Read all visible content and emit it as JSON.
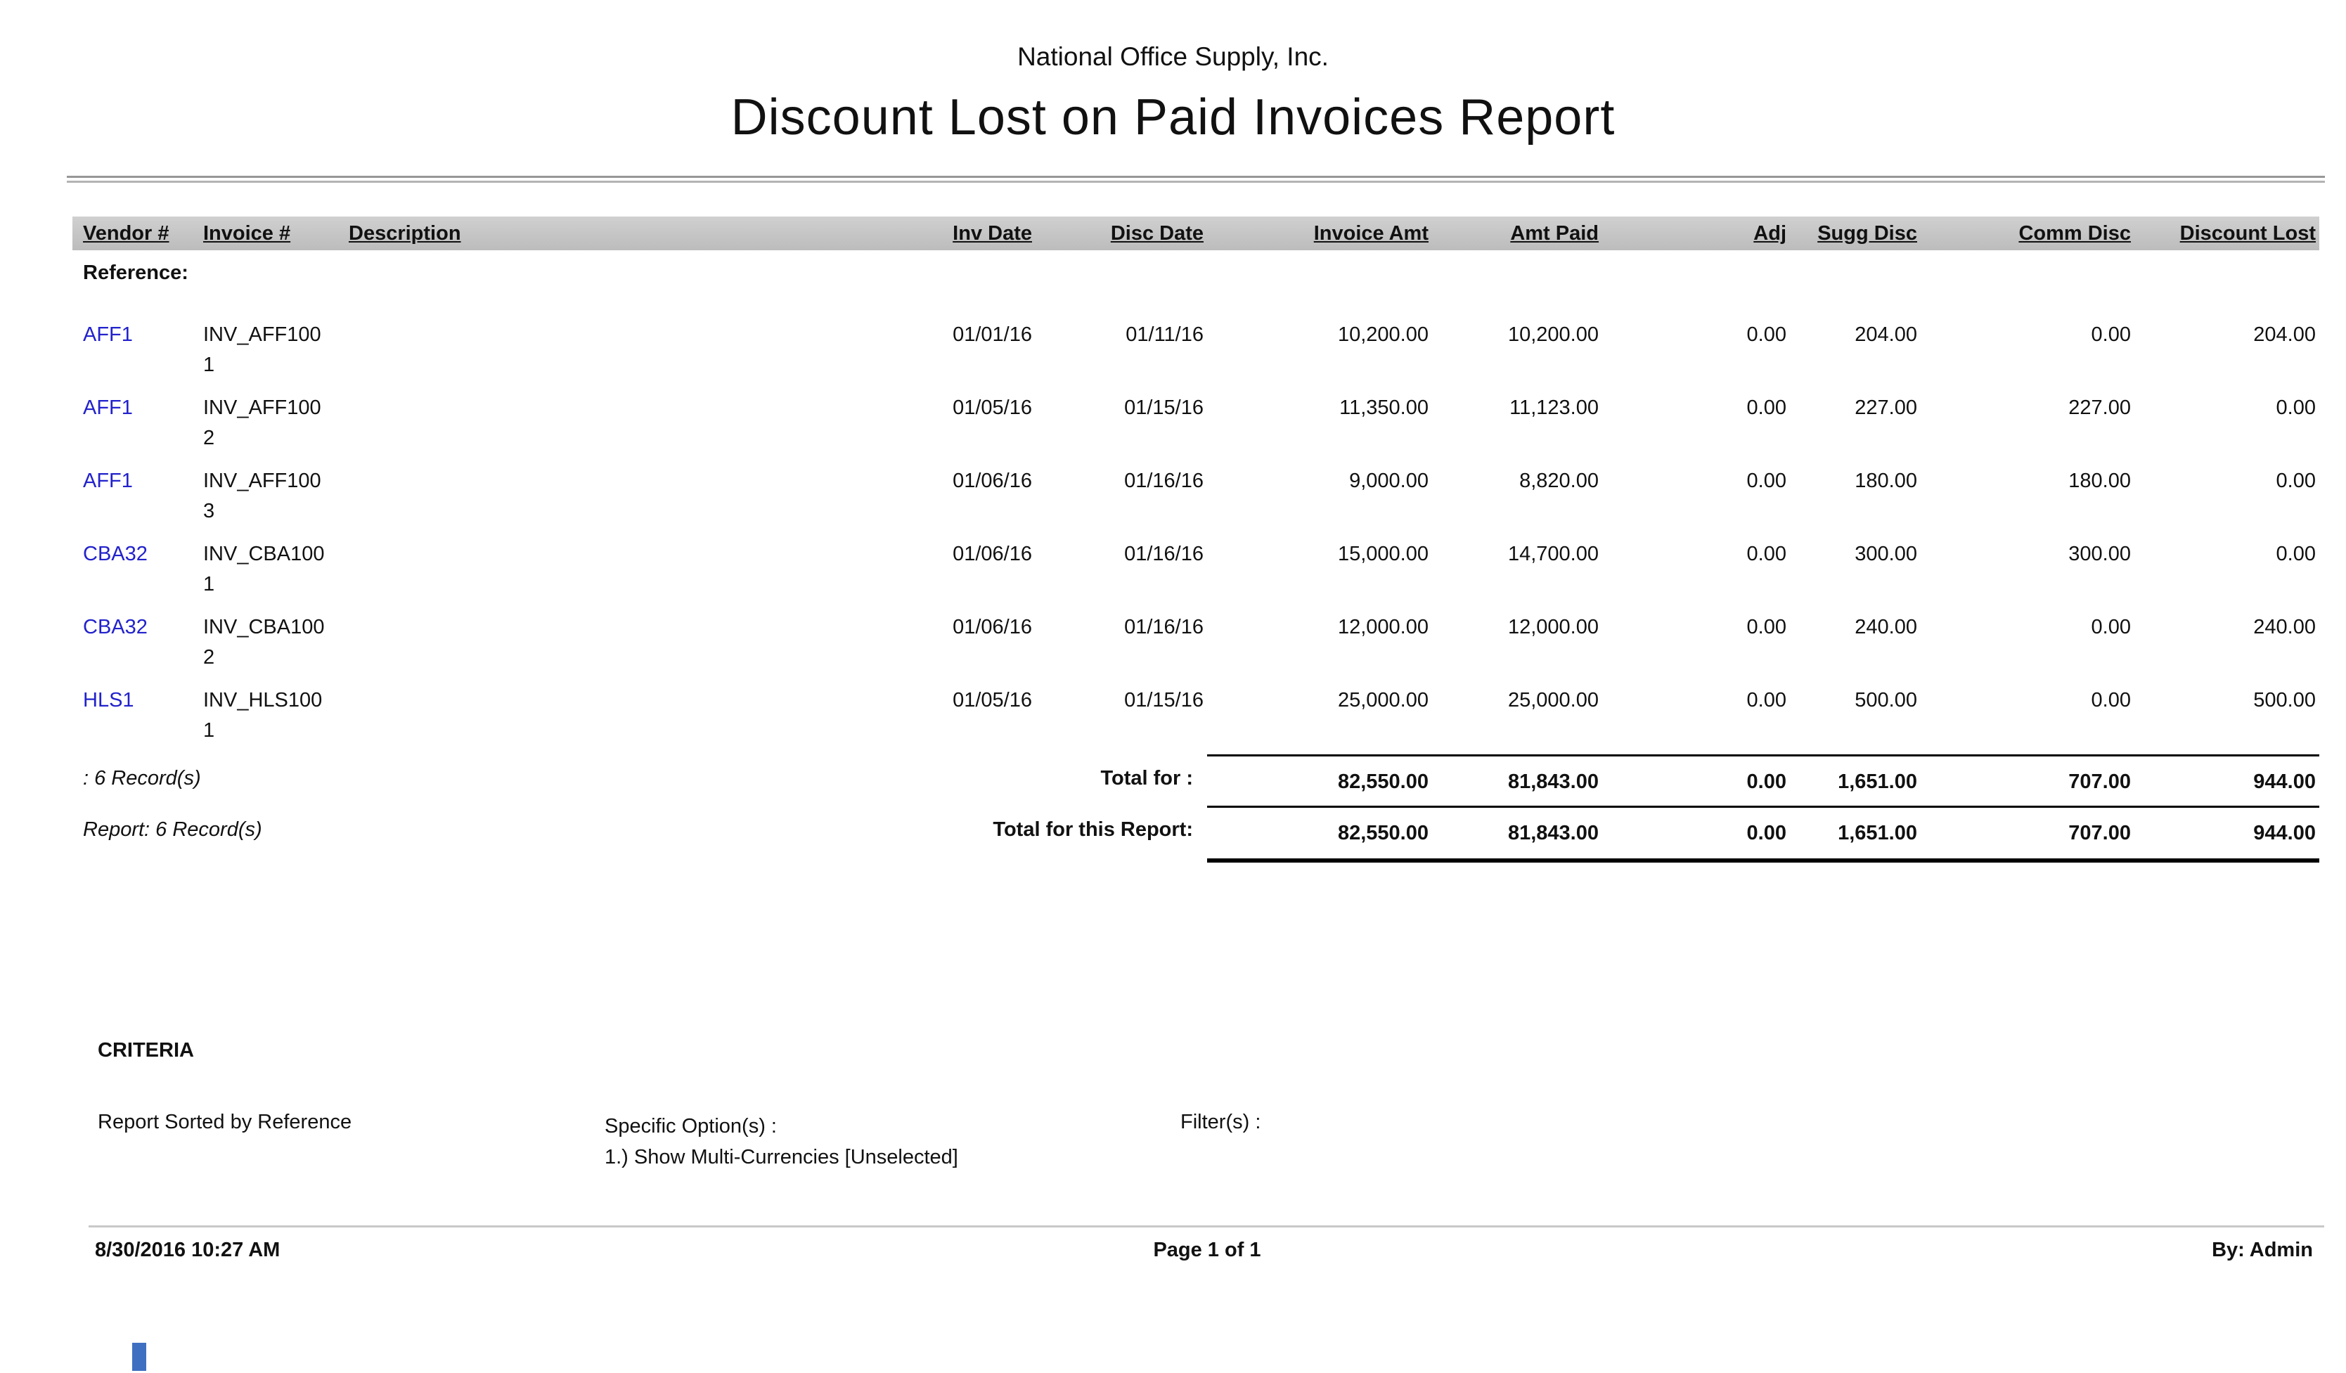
{
  "report": {
    "company": "National Office Supply, Inc.",
    "title": "Discount Lost on Paid Invoices Report"
  },
  "table": {
    "columns": [
      "Vendor #",
      "Invoice #",
      "Description",
      "Inv Date",
      "Disc Date",
      "Invoice Amt",
      "Amt Paid",
      "Adj",
      "Sugg Disc",
      "Comm Disc",
      "Discount Lost"
    ],
    "group_label": "Reference:",
    "rows": [
      {
        "vendor": "AFF1",
        "invoice_l1": "INV_AFF100",
        "invoice_l2": "1",
        "description": "",
        "inv_date": "01/01/16",
        "disc_date": "01/11/16",
        "invoice_amt": "10,200.00",
        "amt_paid": "10,200.00",
        "adj": "0.00",
        "sugg_disc": "204.00",
        "comm_disc": "0.00",
        "discount_lost": "204.00"
      },
      {
        "vendor": "AFF1",
        "invoice_l1": "INV_AFF100",
        "invoice_l2": "2",
        "description": "",
        "inv_date": "01/05/16",
        "disc_date": "01/15/16",
        "invoice_amt": "11,350.00",
        "amt_paid": "11,123.00",
        "adj": "0.00",
        "sugg_disc": "227.00",
        "comm_disc": "227.00",
        "discount_lost": "0.00"
      },
      {
        "vendor": "AFF1",
        "invoice_l1": "INV_AFF100",
        "invoice_l2": "3",
        "description": "",
        "inv_date": "01/06/16",
        "disc_date": "01/16/16",
        "invoice_amt": "9,000.00",
        "amt_paid": "8,820.00",
        "adj": "0.00",
        "sugg_disc": "180.00",
        "comm_disc": "180.00",
        "discount_lost": "0.00"
      },
      {
        "vendor": "CBA32",
        "invoice_l1": "INV_CBA100",
        "invoice_l2": "1",
        "description": "",
        "inv_date": "01/06/16",
        "disc_date": "01/16/16",
        "invoice_amt": "15,000.00",
        "amt_paid": "14,700.00",
        "adj": "0.00",
        "sugg_disc": "300.00",
        "comm_disc": "300.00",
        "discount_lost": "0.00"
      },
      {
        "vendor": "CBA32",
        "invoice_l1": "INV_CBA100",
        "invoice_l2": "2",
        "description": "",
        "inv_date": "01/06/16",
        "disc_date": "01/16/16",
        "invoice_amt": "12,000.00",
        "amt_paid": "12,000.00",
        "adj": "0.00",
        "sugg_disc": "240.00",
        "comm_disc": "0.00",
        "discount_lost": "240.00"
      },
      {
        "vendor": "HLS1",
        "invoice_l1": "INV_HLS100",
        "invoice_l2": "1",
        "description": "",
        "inv_date": "01/05/16",
        "disc_date": "01/15/16",
        "invoice_amt": "25,000.00",
        "amt_paid": "25,000.00",
        "adj": "0.00",
        "sugg_disc": "500.00",
        "comm_disc": "0.00",
        "discount_lost": "500.00"
      }
    ],
    "group_total": {
      "records_label": ": 6 Record(s)",
      "label": "Total for :",
      "invoice_amt": "82,550.00",
      "amt_paid": "81,843.00",
      "adj": "0.00",
      "sugg_disc": "1,651.00",
      "comm_disc": "707.00",
      "discount_lost": "944.00"
    },
    "report_total": {
      "records_label": "Report: 6 Record(s)",
      "label": "Total for this Report:",
      "invoice_amt": "82,550.00",
      "amt_paid": "81,843.00",
      "adj": "0.00",
      "sugg_disc": "1,651.00",
      "comm_disc": "707.00",
      "discount_lost": "944.00"
    }
  },
  "criteria": {
    "heading": "CRITERIA",
    "sorted_by": "Report Sorted by Reference",
    "options_label": "Specific Option(s) :",
    "options_line": "1.) Show Multi-Currencies [Unselected]",
    "filters_label": "Filter(s) :"
  },
  "footer": {
    "datetime": "8/30/2016 10:27 AM",
    "page": "Page 1 of 1",
    "by": "By: Admin"
  },
  "colors": {
    "link": "#2222cc",
    "header_bg": "#c3c3c3"
  }
}
